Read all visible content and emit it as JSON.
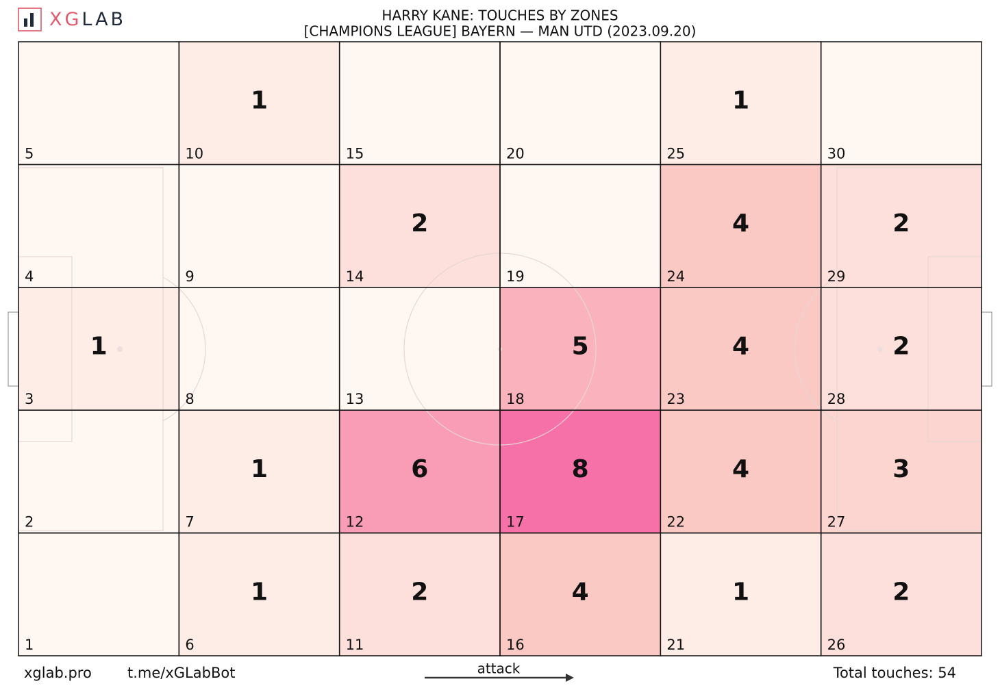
{
  "chart_data": {
    "type": "heatmap",
    "brand_parts": [
      "XG",
      "LAB"
    ],
    "title": "HARRY KANE: TOUCHES BY ZONES",
    "subtitle": "[CHAMPIONS LEAGUE] BAYERN —  MAN UTD (2023.09.20)",
    "categories": [
      "1",
      "2",
      "3",
      "4",
      "5",
      "6",
      "7",
      "8",
      "9",
      "10",
      "11",
      "12",
      "13",
      "14",
      "15",
      "16",
      "17",
      "18",
      "19",
      "20",
      "21",
      "22",
      "23",
      "24",
      "25",
      "26",
      "27",
      "28",
      "29",
      "30"
    ],
    "values": [
      0,
      0,
      1,
      0,
      0,
      1,
      1,
      0,
      0,
      1,
      2,
      6,
      0,
      2,
      0,
      4,
      8,
      5,
      0,
      0,
      1,
      4,
      4,
      4,
      1,
      2,
      3,
      2,
      2,
      0
    ],
    "columns": 6,
    "rows": 5,
    "clim": [
      0,
      8
    ],
    "colormap": [
      "#fff6f1",
      "#fbc4bf",
      "#f565a0"
    ],
    "footer_left": "xglab.pro",
    "footer_bot": "t.me/xGLabBot",
    "direction_label": "attack",
    "total_label": "Total touches: 54"
  }
}
